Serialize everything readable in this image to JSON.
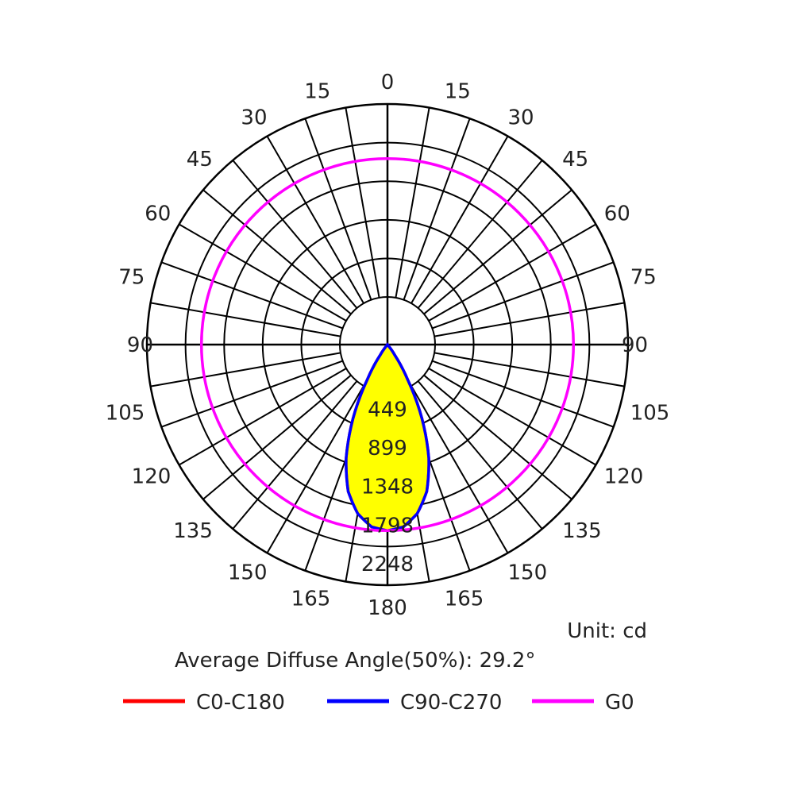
{
  "chart_data": {
    "type": "polar",
    "unit_label": "Unit: cd",
    "average_angle_label": "Average Diffuse Angle(50%): 29.2°",
    "radial_ticks": [
      "449",
      "899",
      "1348",
      "1798",
      "2248"
    ],
    "radial_values": [
      449,
      899,
      1348,
      1798,
      2248
    ],
    "rmax": 2248,
    "left_angle_labels": [
      "180",
      "165",
      "150",
      "135",
      "120",
      "105",
      "90",
      "75",
      "60",
      "45",
      "30",
      "15",
      "0"
    ],
    "right_angle_labels": [
      "165",
      "150",
      "135",
      "120",
      "105",
      "90",
      "75",
      "60",
      "45",
      "30",
      "15"
    ],
    "angle_values": [
      0,
      15,
      30,
      45,
      60,
      75,
      90,
      105,
      120,
      135,
      150,
      165,
      180
    ],
    "series": [
      {
        "name": "C0-C180",
        "color": "#ff0000",
        "angles": [
          0,
          5,
          10,
          15,
          20,
          25,
          30,
          35,
          40,
          90,
          180
        ],
        "values": [
          1800,
          1770,
          1660,
          1470,
          1170,
          790,
          390,
          120,
          0,
          0,
          0
        ]
      },
      {
        "name": "C90-C270",
        "color": "#0000ff",
        "angles": [
          0,
          5,
          10,
          15,
          20,
          25,
          30,
          35,
          40,
          90,
          180
        ],
        "values": [
          1800,
          1770,
          1660,
          1470,
          1170,
          790,
          390,
          120,
          0,
          0,
          0
        ]
      },
      {
        "name": "G0",
        "color": "#ff00ff",
        "angles": [
          0,
          90,
          180
        ],
        "values": [
          1800,
          1800,
          1800
        ]
      }
    ],
    "fill_color": "#ffff00",
    "grid": true
  }
}
